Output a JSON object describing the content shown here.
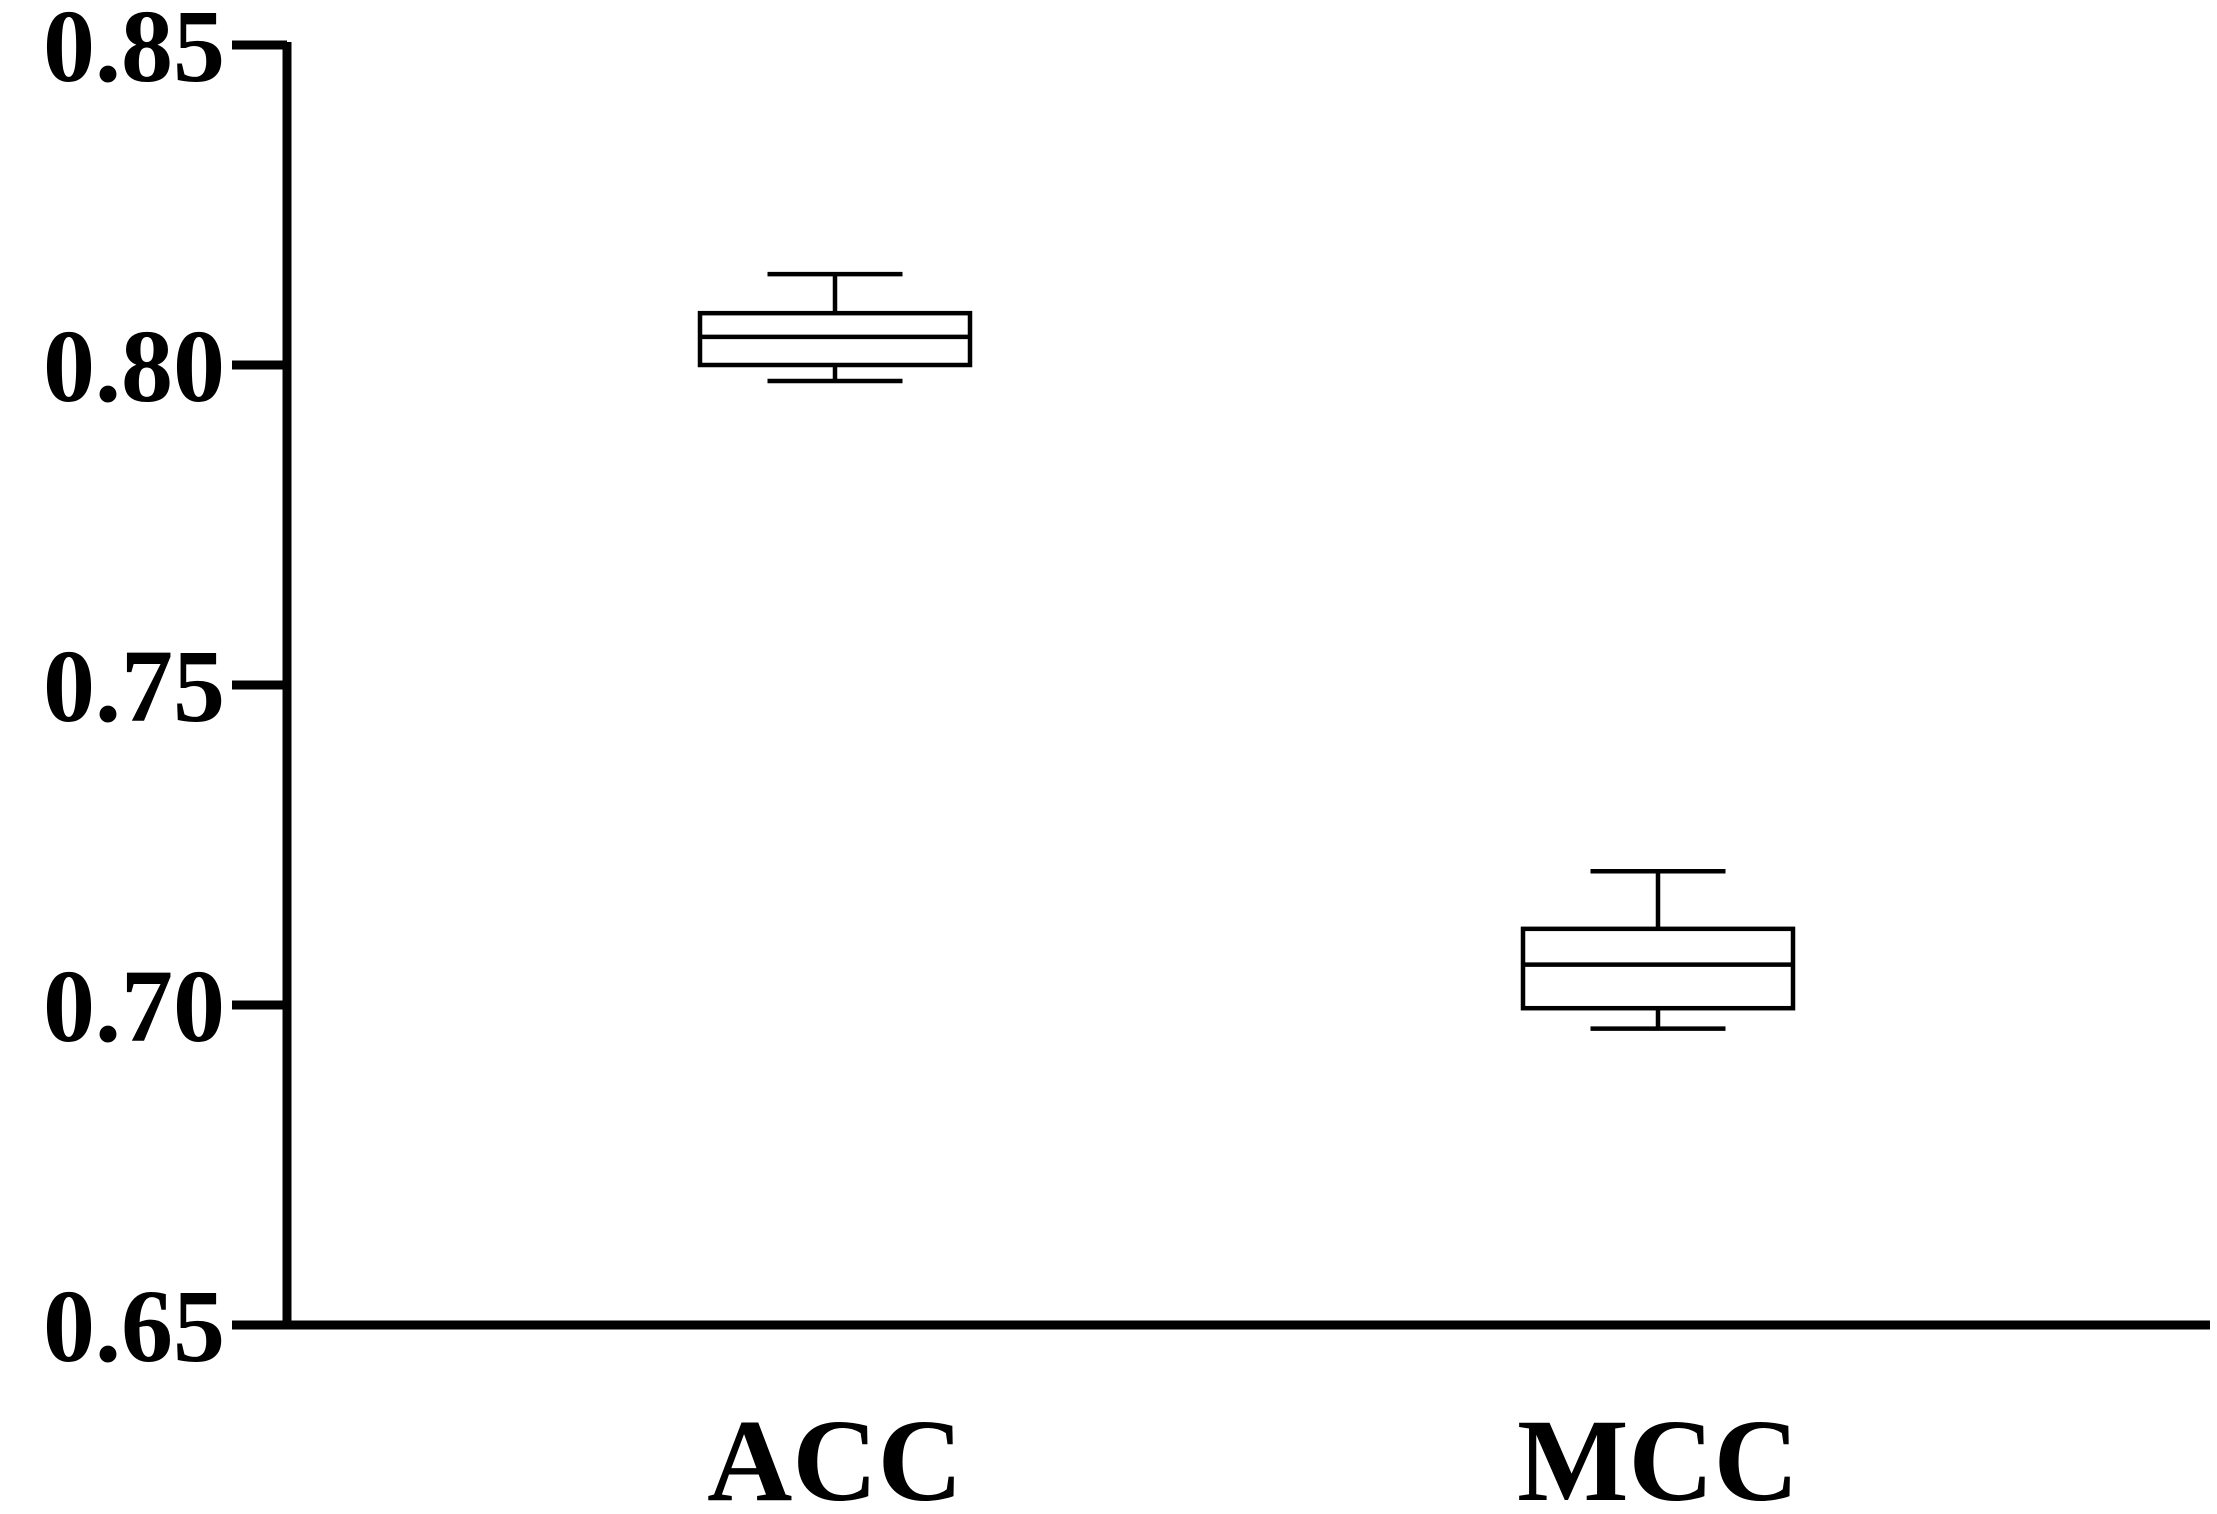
{
  "chart_data": {
    "type": "box",
    "title": "",
    "xlabel": "",
    "ylabel": "",
    "ylim": [
      0.65,
      0.85
    ],
    "yticks": [
      "0.65",
      "0.70",
      "0.75",
      "0.80",
      "0.85"
    ],
    "categories": [
      "ACC",
      "MCC"
    ],
    "boxes": [
      {
        "category": "ACC",
        "min": 0.7975,
        "q1": 0.8,
        "median": 0.8044,
        "q3": 0.8081,
        "max": 0.8142
      },
      {
        "category": "MCC",
        "min": 0.6963,
        "q1": 0.6995,
        "median": 0.7063,
        "q3": 0.7119,
        "max": 0.7209
      }
    ],
    "grid": false,
    "legend": "none",
    "colors": {
      "line": "#000000",
      "box_fill": "#ffffff"
    }
  }
}
